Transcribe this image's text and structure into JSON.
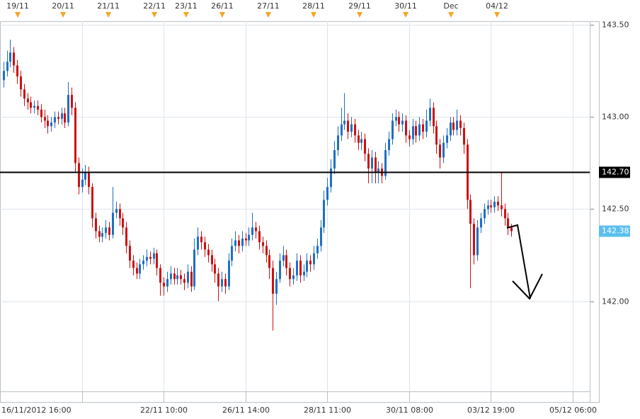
{
  "chart_data": {
    "type": "candlestick",
    "x": [
      1,
      2,
      3,
      4,
      5,
      6,
      7,
      8,
      9,
      10,
      11,
      12,
      13,
      14,
      15,
      16,
      17,
      18,
      19,
      20,
      21,
      22,
      23,
      24,
      25,
      26,
      27,
      28,
      29,
      30,
      31,
      32,
      33,
      34,
      35,
      36,
      37,
      38,
      39,
      40,
      41,
      42,
      43,
      44,
      45,
      46,
      47,
      48,
      49,
      50,
      51,
      52,
      53,
      54,
      55,
      56,
      57,
      58,
      59,
      60,
      61,
      62,
      63,
      64,
      65,
      66,
      67,
      68,
      69,
      70,
      71,
      72,
      73,
      74,
      75,
      76,
      77,
      78,
      79,
      80,
      81,
      82,
      83,
      84,
      85,
      86,
      87,
      88,
      89,
      90,
      91,
      92,
      93,
      94,
      95,
      96,
      97,
      98,
      99,
      100,
      101,
      102,
      103,
      104,
      105,
      106,
      107,
      108,
      109,
      110,
      111,
      112,
      113,
      114,
      115,
      116,
      117,
      118,
      119,
      120,
      121,
      122,
      123,
      124,
      125,
      126,
      127,
      128,
      129,
      130,
      131,
      132,
      133,
      134,
      135,
      136,
      137,
      138,
      139,
      140,
      141,
      142,
      143,
      144,
      145,
      146,
      147,
      148,
      149,
      150
    ],
    "open": [
      143.2,
      143.25,
      143.3,
      143.35,
      143.28,
      143.22,
      143.15,
      143.1,
      143.08,
      143.05,
      143.06,
      143.04,
      143.0,
      142.98,
      142.95,
      142.97,
      143.0,
      142.99,
      143.02,
      142.97,
      143.12,
      143.05,
      142.75,
      142.62,
      142.66,
      142.7,
      142.62,
      142.45,
      142.38,
      142.35,
      142.37,
      142.4,
      142.36,
      142.48,
      142.5,
      142.45,
      142.4,
      142.3,
      142.22,
      142.18,
      142.15,
      142.2,
      142.22,
      142.24,
      142.23,
      142.26,
      142.18,
      142.1,
      142.08,
      142.12,
      142.15,
      142.12,
      142.14,
      142.12,
      142.1,
      142.16,
      142.08,
      142.28,
      142.35,
      142.32,
      142.28,
      142.25,
      142.2,
      142.15,
      142.08,
      142.12,
      142.08,
      142.22,
      142.3,
      142.33,
      142.3,
      142.34,
      142.33,
      142.36,
      142.4,
      142.38,
      142.32,
      142.3,
      142.25,
      142.18,
      142.04,
      142.12,
      142.22,
      142.25,
      142.18,
      142.12,
      142.14,
      142.22,
      142.14,
      142.16,
      142.22,
      142.2,
      142.26,
      142.3,
      142.4,
      142.55,
      142.62,
      142.72,
      142.82,
      142.9,
      142.96,
      142.98,
      142.92,
      142.96,
      142.9,
      142.86,
      142.88,
      142.8,
      142.72,
      142.78,
      142.7,
      142.72,
      142.68,
      142.82,
      142.88,
      142.98,
      143.0,
      142.96,
      142.98,
      142.9,
      142.88,
      142.95,
      142.9,
      142.96,
      142.92,
      142.98,
      143.05,
      142.95,
      142.85,
      142.78,
      142.86,
      142.9,
      142.97,
      142.93,
      142.98,
      142.94,
      142.85,
      142.55,
      142.42,
      142.25,
      142.4,
      142.45,
      142.5,
      142.52,
      142.51,
      142.54,
      142.52,
      142.5,
      142.45,
      142.4
    ],
    "high": [
      143.3,
      143.36,
      143.42,
      143.38,
      143.31,
      143.25,
      143.18,
      143.13,
      143.11,
      143.09,
      143.09,
      143.07,
      143.04,
      143.01,
      143.0,
      143.03,
      143.03,
      143.05,
      143.05,
      143.19,
      143.16,
      143.08,
      142.78,
      142.72,
      142.74,
      142.73,
      142.64,
      142.48,
      142.41,
      142.4,
      142.44,
      142.43,
      142.62,
      142.54,
      142.53,
      142.48,
      142.43,
      142.33,
      142.25,
      142.21,
      142.23,
      142.25,
      142.28,
      142.27,
      142.29,
      142.28,
      142.2,
      142.13,
      142.16,
      142.19,
      142.18,
      142.18,
      142.17,
      142.15,
      142.2,
      142.19,
      142.34,
      142.4,
      142.38,
      142.35,
      142.31,
      142.28,
      142.23,
      142.18,
      142.16,
      142.15,
      142.26,
      142.34,
      142.38,
      142.36,
      142.38,
      142.37,
      142.4,
      142.48,
      142.43,
      142.41,
      142.35,
      142.33,
      142.28,
      142.22,
      142.16,
      142.26,
      142.3,
      142.28,
      142.21,
      142.18,
      142.26,
      142.25,
      142.2,
      142.26,
      142.25,
      142.3,
      142.34,
      142.44,
      142.6,
      142.67,
      142.77,
      142.87,
      142.95,
      143.05,
      143.13,
      143.02,
      143.0,
      142.99,
      142.93,
      142.92,
      142.91,
      142.83,
      142.82,
      142.81,
      142.76,
      142.75,
      142.86,
      142.92,
      143.02,
      143.04,
      143.03,
      143.02,
      143.01,
      142.93,
      142.99,
      142.98,
      143.0,
      142.99,
      143.04,
      143.1,
      143.08,
      142.98,
      142.88,
      142.9,
      142.94,
      143.0,
      143.0,
      143.04,
      143.01,
      142.97,
      142.88,
      142.58,
      142.45,
      142.44,
      142.48,
      142.53,
      142.55,
      142.55,
      142.57,
      142.57,
      142.7,
      142.53,
      142.48,
      142.42
    ],
    "low": [
      143.16,
      143.22,
      143.27,
      143.24,
      143.18,
      143.11,
      143.06,
      143.04,
      143.02,
      143.02,
      143.01,
      142.97,
      142.94,
      142.91,
      142.92,
      142.94,
      142.96,
      142.96,
      142.94,
      142.95,
      143.01,
      142.7,
      142.58,
      142.59,
      142.63,
      142.58,
      142.4,
      142.34,
      142.32,
      142.32,
      142.34,
      142.33,
      142.34,
      142.45,
      142.41,
      142.36,
      142.26,
      142.18,
      142.14,
      142.12,
      142.12,
      142.17,
      142.19,
      142.2,
      142.2,
      142.14,
      142.03,
      142.03,
      142.05,
      142.09,
      142.09,
      142.09,
      142.09,
      142.06,
      142.07,
      142.05,
      142.06,
      142.25,
      142.28,
      142.24,
      142.21,
      142.16,
      142.1,
      142.0,
      142.05,
      142.04,
      142.06,
      142.19,
      142.27,
      142.26,
      142.27,
      142.3,
      142.3,
      142.33,
      142.34,
      142.28,
      142.26,
      142.21,
      142.12,
      141.84,
      141.98,
      142.1,
      142.19,
      142.14,
      142.08,
      142.09,
      142.11,
      142.1,
      142.11,
      142.13,
      142.16,
      142.17,
      142.23,
      142.27,
      142.37,
      142.52,
      142.59,
      142.69,
      142.79,
      142.87,
      142.93,
      142.88,
      142.89,
      142.86,
      142.82,
      142.82,
      142.76,
      142.64,
      142.64,
      142.64,
      142.64,
      142.64,
      142.66,
      142.79,
      142.85,
      142.95,
      142.92,
      142.92,
      142.86,
      142.84,
      142.85,
      142.86,
      142.87,
      142.88,
      142.89,
      142.95,
      142.91,
      142.8,
      142.72,
      142.75,
      142.83,
      142.87,
      142.9,
      142.9,
      142.9,
      142.8,
      142.5,
      142.07,
      142.2,
      142.22,
      142.37,
      142.42,
      142.47,
      142.48,
      142.48,
      142.49,
      142.46,
      142.41,
      142.36,
      142.35
    ],
    "close": [
      143.25,
      143.3,
      143.35,
      143.28,
      143.22,
      143.15,
      143.1,
      143.08,
      143.05,
      143.06,
      143.04,
      143.0,
      142.98,
      142.95,
      142.97,
      143.0,
      142.99,
      143.02,
      142.97,
      143.12,
      143.05,
      142.75,
      142.62,
      142.66,
      142.7,
      142.62,
      142.45,
      142.38,
      142.35,
      142.37,
      142.4,
      142.36,
      142.48,
      142.5,
      142.45,
      142.4,
      142.3,
      142.22,
      142.18,
      142.15,
      142.2,
      142.22,
      142.24,
      142.23,
      142.26,
      142.18,
      142.1,
      142.08,
      142.12,
      142.15,
      142.12,
      142.14,
      142.12,
      142.1,
      142.16,
      142.08,
      142.28,
      142.35,
      142.32,
      142.28,
      142.25,
      142.2,
      142.15,
      142.08,
      142.12,
      142.08,
      142.22,
      142.3,
      142.33,
      142.3,
      142.34,
      142.33,
      142.36,
      142.4,
      142.38,
      142.32,
      142.3,
      142.25,
      142.18,
      142.04,
      142.12,
      142.22,
      142.25,
      142.18,
      142.12,
      142.14,
      142.22,
      142.14,
      142.16,
      142.22,
      142.2,
      142.26,
      142.3,
      142.4,
      142.55,
      142.62,
      142.72,
      142.82,
      142.9,
      142.96,
      142.98,
      142.92,
      142.96,
      142.9,
      142.86,
      142.88,
      142.8,
      142.72,
      142.78,
      142.7,
      142.72,
      142.68,
      142.82,
      142.88,
      142.98,
      143.0,
      142.96,
      142.98,
      142.9,
      142.88,
      142.95,
      142.9,
      142.96,
      142.92,
      142.98,
      143.05,
      142.95,
      142.85,
      142.78,
      142.86,
      142.9,
      142.97,
      142.93,
      142.98,
      142.94,
      142.85,
      142.55,
      142.42,
      142.25,
      142.4,
      142.45,
      142.5,
      142.52,
      142.51,
      142.54,
      142.52,
      142.5,
      142.45,
      142.4,
      142.38
    ],
    "up_color": "#1f6fc4",
    "down_color": "#cc1111",
    "xlim": [
      0,
      173
    ],
    "ylim": [
      141.51,
      143.52
    ],
    "yticks": [
      {
        "value": 142.0,
        "label": "142.00"
      },
      {
        "value": 142.5,
        "label": "142.50"
      },
      {
        "value": 143.0,
        "label": "143.00"
      },
      {
        "value": 143.5,
        "label": "143.50"
      }
    ],
    "xticks": [
      {
        "value": 0,
        "label": "16/11/2012 16:00"
      },
      {
        "value": 24,
        "label": null
      },
      {
        "value": 48,
        "label": "22/11 10:00"
      },
      {
        "value": 72,
        "label": "26/11 14:00"
      },
      {
        "value": 96,
        "label": "28/11 11:00"
      },
      {
        "value": 120,
        "label": "30/11 08:00"
      },
      {
        "value": 144,
        "label": "03/12 19:00"
      },
      {
        "value": 168,
        "label": "05/12 06:00"
      }
    ],
    "x2ticks": [
      {
        "value": 5.2,
        "label": "19/11"
      },
      {
        "value": 18.5,
        "label": "20/11"
      },
      {
        "value": 31.8,
        "label": "21/11"
      },
      {
        "value": 45.3,
        "label": "22/11"
      },
      {
        "value": 54.6,
        "label": "23/11"
      },
      {
        "value": 65.2,
        "label": "26/11"
      },
      {
        "value": 78.7,
        "label": "27/11"
      },
      {
        "value": 92,
        "label": "28/11"
      },
      {
        "value": 105.5,
        "label": "29/11"
      },
      {
        "value": 119,
        "label": "30/11"
      },
      {
        "value": 132.3,
        "label": "Dec"
      },
      {
        "value": 145.8,
        "label": "04/12"
      }
    ],
    "reference_line": {
      "value": 142.7,
      "label": "142.70",
      "color": "#000000"
    },
    "last_price": {
      "value": 142.38,
      "label": "142.38",
      "color": "#5bbfee"
    },
    "grid": true
  }
}
